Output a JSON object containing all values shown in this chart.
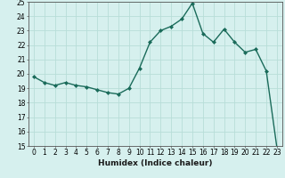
{
  "x": [
    0,
    1,
    2,
    3,
    4,
    5,
    6,
    7,
    8,
    9,
    10,
    11,
    12,
    13,
    14,
    15,
    16,
    17,
    18,
    19,
    20,
    21,
    22,
    23
  ],
  "y": [
    19.8,
    19.4,
    19.2,
    19.4,
    19.2,
    19.1,
    18.9,
    18.7,
    18.6,
    19.0,
    20.4,
    22.2,
    23.0,
    23.3,
    23.8,
    24.9,
    22.8,
    22.2,
    23.1,
    22.2,
    21.5,
    21.7,
    20.2,
    14.9
  ],
  "line_color": "#1a6b5a",
  "marker": "D",
  "marker_size": 2,
  "xlabel": "Humidex (Indice chaleur)",
  "ylim": [
    15,
    25
  ],
  "xlim": [
    -0.5,
    23.5
  ],
  "yticks": [
    15,
    16,
    17,
    18,
    19,
    20,
    21,
    22,
    23,
    24,
    25
  ],
  "xticks": [
    0,
    1,
    2,
    3,
    4,
    5,
    6,
    7,
    8,
    9,
    10,
    11,
    12,
    13,
    14,
    15,
    16,
    17,
    18,
    19,
    20,
    21,
    22,
    23
  ],
  "bg_color": "#d6f0ee",
  "grid_color": "#b8ddd8",
  "tick_label_fontsize": 5.5,
  "xlabel_fontsize": 6.5,
  "line_width": 1.0
}
